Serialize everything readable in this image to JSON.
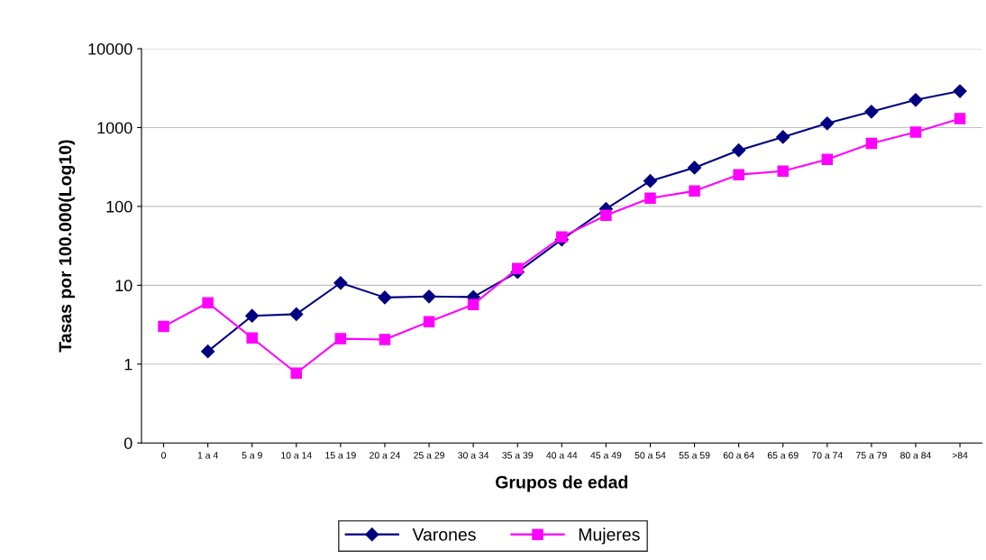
{
  "chart_data": {
    "type": "line",
    "xlabel": "Grupos de edad",
    "ylabel": "Tasas por 100.000(Log10)",
    "categories": [
      "0",
      "1 a 4",
      "5 a 9",
      "10 a 14",
      "15 a 19",
      "20 a 24",
      "25 a 29",
      "30 a 34",
      "35 a 39",
      "40 a 44",
      "45 a 49",
      "50 a 54",
      "55 a 59",
      "60 a 64",
      "65 a 69",
      "70 a 74",
      "75 a 79",
      "80 a 84",
      ">84"
    ],
    "series": [
      {
        "name": "Varones",
        "color": "#000080",
        "marker": "diamond",
        "values": [
          null,
          1.45,
          4.1,
          4.3,
          10.7,
          7.0,
          7.2,
          7.1,
          14.7,
          38,
          93,
          210,
          310,
          515,
          760,
          1130,
          1590,
          2240,
          2900
        ]
      },
      {
        "name": "Mujeres",
        "color": "#ff00ff",
        "marker": "square",
        "values": [
          3.0,
          6.0,
          2.15,
          0.77,
          2.1,
          2.05,
          3.45,
          5.7,
          16.3,
          41,
          77,
          127,
          157,
          253,
          280,
          395,
          630,
          875,
          1300
        ]
      }
    ],
    "log": "y",
    "ylim": [
      0.1,
      10000
    ],
    "yticks": [
      {
        "value": 0.1,
        "label": "0"
      },
      1,
      10,
      100,
      1000,
      10000
    ],
    "grid": "y",
    "legend": "bottom",
    "line_style": "solid"
  }
}
